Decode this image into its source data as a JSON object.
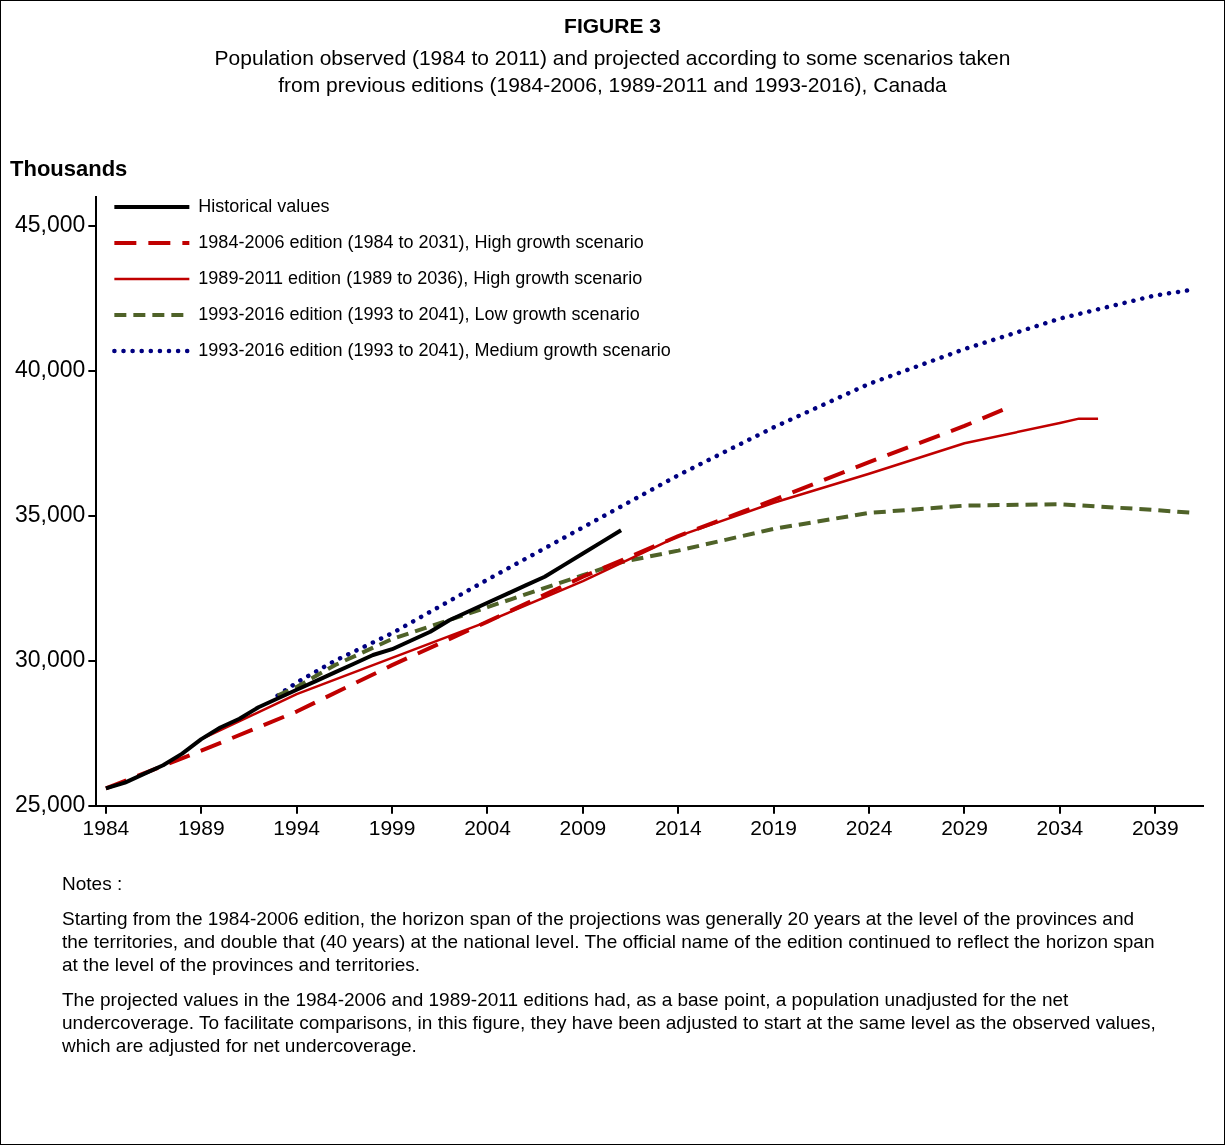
{
  "chart_data": {
    "type": "line",
    "title": "FIGURE 3",
    "subtitle": "Population observed (1984 to 2011) and projected according to some scenarios taken from previous editions (1984-2006, 1989-2011 and 1993-2016), Canada",
    "ylabel": "Thousands",
    "xlim": [
      1983.5,
      2041.5
    ],
    "xticks": [
      1984,
      1989,
      1994,
      1999,
      2004,
      2009,
      2014,
      2019,
      2024,
      2029,
      2034,
      2039
    ],
    "ylim": [
      25000,
      46000
    ],
    "yticks": [
      {
        "value": 25000,
        "label": "25,000"
      },
      {
        "value": 30000,
        "label": "30,000"
      },
      {
        "value": 35000,
        "label": "35,000"
      },
      {
        "value": 40000,
        "label": "40,000"
      },
      {
        "value": 45000,
        "label": "45,000"
      }
    ],
    "legend": "top left",
    "grid": false,
    "marker": "none",
    "series": [
      {
        "name": "Historical values",
        "color": "#000000",
        "line_style": "solid",
        "x": [
          1984,
          1985,
          1986,
          1987,
          1988,
          1989,
          1990,
          1991,
          1992,
          1993,
          1994,
          1995,
          1996,
          1997,
          1998,
          1999,
          2000,
          2001,
          2002,
          2003,
          2004,
          2005,
          2006,
          2007,
          2008,
          2009,
          2010,
          2011
        ],
        "values": [
          25600,
          25800,
          26100,
          26400,
          26800,
          27300,
          27700,
          28000,
          28400,
          28700,
          29000,
          29300,
          29600,
          29900,
          30200,
          30400,
          30700,
          31000,
          31400,
          31700,
          32000,
          32300,
          32600,
          32900,
          33300,
          33700,
          34100,
          34500
        ]
      },
      {
        "name": "1984-2006 edition (1984 to 2031), High growth scenario",
        "color": "#c00000",
        "line_style": "dashed",
        "x": [
          1984,
          1989,
          1994,
          1999,
          2004,
          2009,
          2014,
          2019,
          2024,
          2029,
          2031
        ],
        "values": [
          25600,
          26900,
          28250,
          29850,
          31350,
          32900,
          34300,
          35550,
          36850,
          38100,
          38650
        ]
      },
      {
        "name": "1989-2011 edition (1989 to 2036), High growth scenario",
        "color": "#c00000",
        "line_style": "solid",
        "x": [
          1989,
          1994,
          1999,
          2004,
          2009,
          2014,
          2019,
          2024,
          2029,
          2034,
          2035,
          2036
        ],
        "values": [
          27300,
          28850,
          30100,
          31350,
          32750,
          34300,
          35450,
          36450,
          37500,
          38200,
          38350,
          38350
        ]
      },
      {
        "name": "1993-2016 edition (1993 to 2041), Low growth scenario",
        "color": "#4f6228",
        "line_style": "dashed",
        "x": [
          1993,
          1994,
          1996,
          1999,
          2004,
          2009,
          2011,
          2014,
          2019,
          2024,
          2029,
          2034,
          2039,
          2041
        ],
        "values": [
          28800,
          29100,
          29850,
          30750,
          31850,
          32950,
          33400,
          33800,
          34550,
          35100,
          35350,
          35400,
          35200,
          35100
        ]
      },
      {
        "name": "1993-2016 edition (1993 to 2041), Medium growth scenario",
        "color": "#000080",
        "line_style": "dotted",
        "x": [
          1993,
          1994,
          1996,
          1999,
          2004,
          2009,
          2014,
          2019,
          2024,
          2029,
          2034,
          2039,
          2041
        ],
        "values": [
          28800,
          29250,
          30000,
          30950,
          32800,
          34600,
          36400,
          38050,
          39550,
          40750,
          41800,
          42600,
          42800
        ]
      }
    ],
    "annotations": [
      "Notes :",
      "Starting from the 1984-2006 edition, the horizon span of the projections was generally 20 years at the level of the provinces and the territories, and double that (40 years) at the national level. The official name of the edition continued to reflect the horizon span at the level of the provinces and territories.",
      "The projected values in the 1984-2006 and 1989-2011 editions had, as a base point, a population unadjusted for the net undercoverage. To facilitate comparisons, in this figure, they have been adjusted to start at the same level as the observed values, which are adjusted for net undercoverage."
    ]
  }
}
